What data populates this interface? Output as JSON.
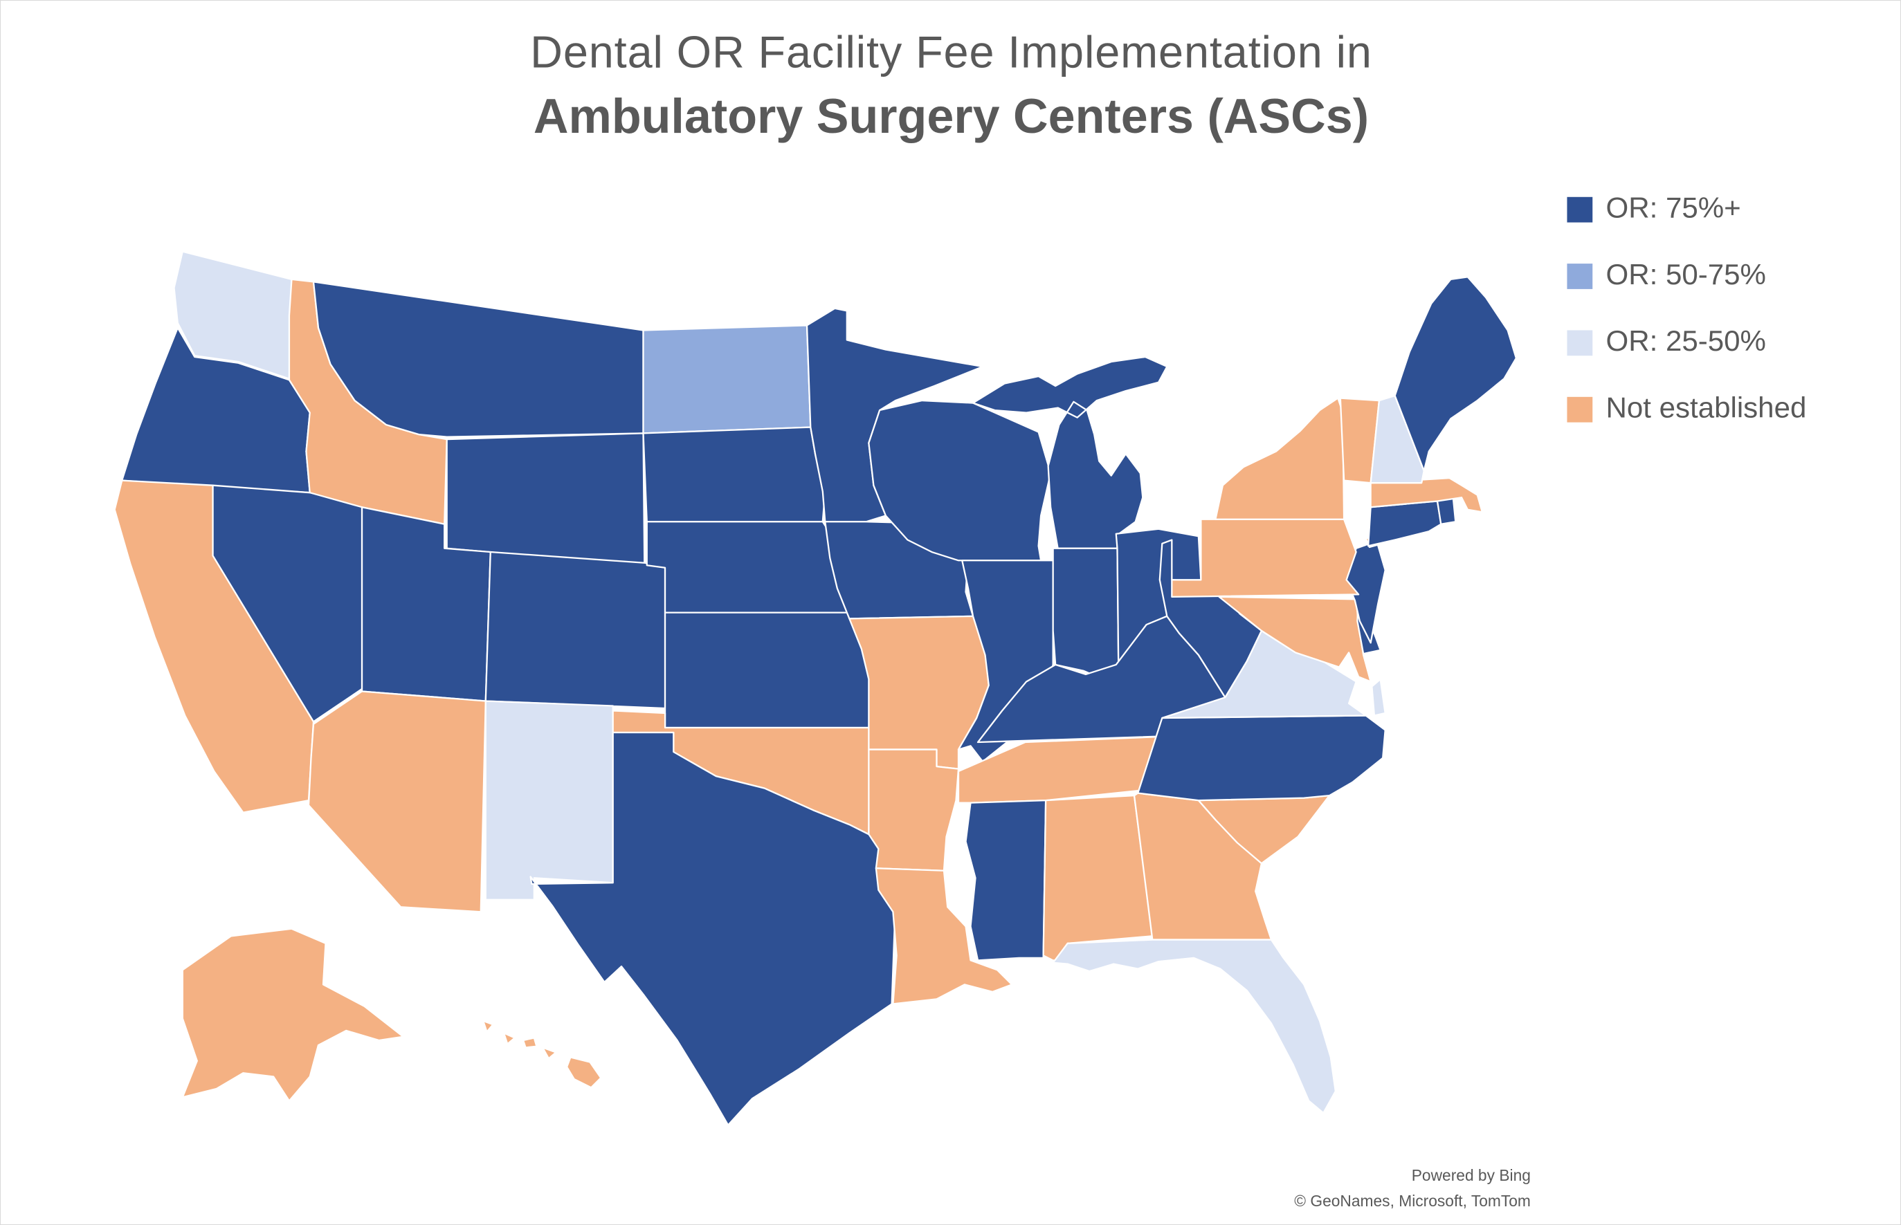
{
  "title": {
    "line1": "Dental OR Facility Fee Implementation in",
    "line2": "Ambulatory Surgery Centers (ASCs)"
  },
  "colors": {
    "or_75_plus": "#2E5093",
    "or_50_75": "#8FAADC",
    "or_25_50": "#D9E2F3",
    "not_established": "#F4B183",
    "title_text": "#595959",
    "state_border": "#FFFFFF"
  },
  "legend": {
    "items": [
      {
        "label": "OR: 75%+",
        "color_key": "or_75_plus"
      },
      {
        "label": "OR: 50-75%",
        "color_key": "or_50_75"
      },
      {
        "label": "OR: 25-50%",
        "color_key": "or_25_50"
      },
      {
        "label": "Not established",
        "color_key": "not_established"
      }
    ]
  },
  "attribution": {
    "line1": "Powered by Bing",
    "line2": "© GeoNames, Microsoft, TomTom"
  },
  "chart_data": {
    "type": "choropleth",
    "region": "United States",
    "title": "Dental OR Facility Fee Implementation in Ambulatory Surgery Centers (ASCs)",
    "categories": [
      "OR: 75%+",
      "OR: 50-75%",
      "OR: 25-50%",
      "Not established"
    ],
    "states": [
      {
        "id": "WA",
        "name": "Washington",
        "category": "OR: 25-50%"
      },
      {
        "id": "OR",
        "name": "Oregon",
        "category": "OR: 75%+"
      },
      {
        "id": "CA",
        "name": "California",
        "category": "Not established"
      },
      {
        "id": "NV",
        "name": "Nevada",
        "category": "OR: 75%+"
      },
      {
        "id": "ID",
        "name": "Idaho",
        "category": "Not established"
      },
      {
        "id": "MT",
        "name": "Montana",
        "category": "OR: 75%+"
      },
      {
        "id": "WY",
        "name": "Wyoming",
        "category": "OR: 75%+"
      },
      {
        "id": "UT",
        "name": "Utah",
        "category": "OR: 75%+"
      },
      {
        "id": "CO",
        "name": "Colorado",
        "category": "OR: 75%+"
      },
      {
        "id": "AZ",
        "name": "Arizona",
        "category": "Not established"
      },
      {
        "id": "NM",
        "name": "New Mexico",
        "category": "OR: 25-50%"
      },
      {
        "id": "ND",
        "name": "North Dakota",
        "category": "OR: 50-75%"
      },
      {
        "id": "SD",
        "name": "South Dakota",
        "category": "OR: 75%+"
      },
      {
        "id": "NE",
        "name": "Nebraska",
        "category": "OR: 75%+"
      },
      {
        "id": "KS",
        "name": "Kansas",
        "category": "OR: 75%+"
      },
      {
        "id": "OK",
        "name": "Oklahoma",
        "category": "Not established"
      },
      {
        "id": "TX",
        "name": "Texas",
        "category": "OR: 75%+"
      },
      {
        "id": "MN",
        "name": "Minnesota",
        "category": "OR: 75%+"
      },
      {
        "id": "IA",
        "name": "Iowa",
        "category": "OR: 75%+"
      },
      {
        "id": "MO",
        "name": "Missouri",
        "category": "Not established"
      },
      {
        "id": "AR",
        "name": "Arkansas",
        "category": "Not established"
      },
      {
        "id": "LA",
        "name": "Louisiana",
        "category": "Not established"
      },
      {
        "id": "WI",
        "name": "Wisconsin",
        "category": "OR: 75%+"
      },
      {
        "id": "IL",
        "name": "Illinois",
        "category": "OR: 75%+"
      },
      {
        "id": "MI",
        "name": "Michigan",
        "category": "OR: 75%+"
      },
      {
        "id": "IN",
        "name": "Indiana",
        "category": "OR: 75%+"
      },
      {
        "id": "OH",
        "name": "Ohio",
        "category": "OR: 75%+"
      },
      {
        "id": "KY",
        "name": "Kentucky",
        "category": "OR: 75%+"
      },
      {
        "id": "WV",
        "name": "West Virginia",
        "category": "OR: 75%+"
      },
      {
        "id": "TN",
        "name": "Tennessee",
        "category": "Not established"
      },
      {
        "id": "MS",
        "name": "Mississippi",
        "category": "OR: 75%+"
      },
      {
        "id": "AL",
        "name": "Alabama",
        "category": "Not established"
      },
      {
        "id": "GA",
        "name": "Georgia",
        "category": "Not established"
      },
      {
        "id": "SC",
        "name": "South Carolina",
        "category": "Not established"
      },
      {
        "id": "NC",
        "name": "North Carolina",
        "category": "OR: 75%+"
      },
      {
        "id": "VA",
        "name": "Virginia",
        "category": "OR: 25-50%"
      },
      {
        "id": "FL",
        "name": "Florida",
        "category": "OR: 25-50%"
      },
      {
        "id": "MD",
        "name": "Maryland",
        "category": "Not established"
      },
      {
        "id": "DE",
        "name": "Delaware",
        "category": "OR: 75%+"
      },
      {
        "id": "NJ",
        "name": "New Jersey",
        "category": "OR: 75%+"
      },
      {
        "id": "PA",
        "name": "Pennsylvania",
        "category": "Not established"
      },
      {
        "id": "NY",
        "name": "New York",
        "category": "Not established"
      },
      {
        "id": "CT",
        "name": "Connecticut",
        "category": "OR: 75%+"
      },
      {
        "id": "RI",
        "name": "Rhode Island",
        "category": "OR: 75%+"
      },
      {
        "id": "MA",
        "name": "Massachusetts",
        "category": "Not established"
      },
      {
        "id": "VT",
        "name": "Vermont",
        "category": "Not established"
      },
      {
        "id": "NH",
        "name": "New Hampshire",
        "category": "OR: 25-50%"
      },
      {
        "id": "ME",
        "name": "Maine",
        "category": "OR: 75%+"
      },
      {
        "id": "AK",
        "name": "Alaska",
        "category": "Not established"
      },
      {
        "id": "HI",
        "name": "Hawaii",
        "category": "Not established"
      }
    ]
  }
}
